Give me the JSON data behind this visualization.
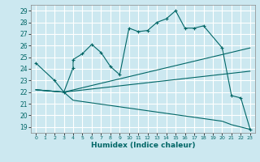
{
  "title": "",
  "xlabel": "Humidex (Indice chaleur)",
  "bg_color": "#cce8f0",
  "grid_color": "#ffffff",
  "line_color": "#006666",
  "xlim": [
    -0.5,
    23.5
  ],
  "ylim": [
    18.5,
    29.5
  ],
  "xticks": [
    0,
    1,
    2,
    3,
    4,
    5,
    6,
    7,
    8,
    9,
    10,
    11,
    12,
    13,
    14,
    15,
    16,
    17,
    18,
    19,
    20,
    21,
    22,
    23
  ],
  "yticks": [
    19,
    20,
    21,
    22,
    23,
    24,
    25,
    26,
    27,
    28,
    29
  ],
  "lines": [
    {
      "x": [
        0,
        2,
        3,
        4,
        4,
        5,
        6,
        7,
        8,
        9,
        10,
        11,
        12,
        13,
        14,
        15,
        16,
        17,
        18,
        20,
        21,
        22,
        23
      ],
      "y": [
        24.5,
        23.0,
        22.0,
        24.1,
        24.8,
        25.3,
        26.1,
        25.4,
        24.2,
        23.5,
        27.5,
        27.2,
        27.3,
        28.0,
        28.3,
        29.0,
        27.5,
        27.5,
        27.7,
        25.8,
        21.7,
        21.5,
        18.8
      ],
      "marker": "+"
    },
    {
      "x": [
        0,
        3,
        23
      ],
      "y": [
        22.2,
        22.0,
        25.8
      ]
    },
    {
      "x": [
        0,
        3,
        23
      ],
      "y": [
        22.2,
        22.0,
        23.8
      ]
    },
    {
      "x": [
        0,
        3,
        4,
        20,
        21,
        22,
        23
      ],
      "y": [
        22.2,
        22.0,
        21.3,
        19.5,
        19.2,
        19.0,
        18.8
      ]
    }
  ]
}
